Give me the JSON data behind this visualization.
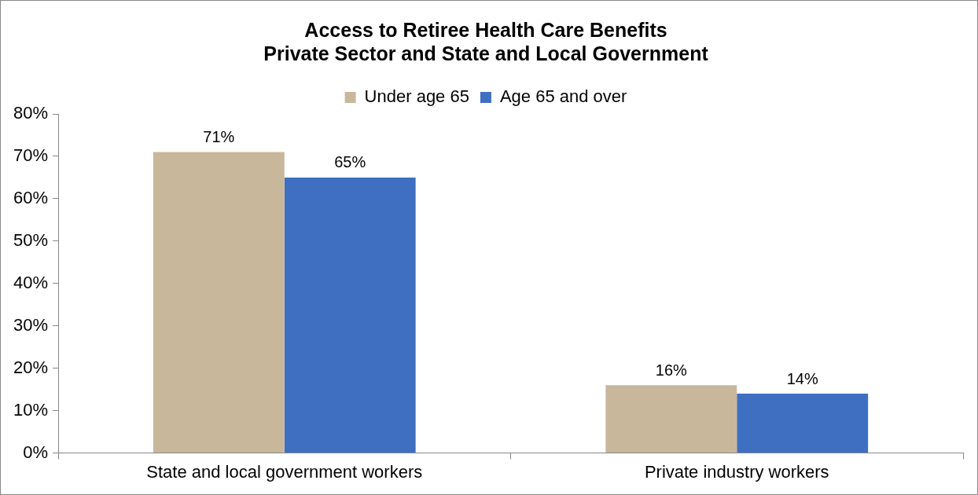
{
  "chart_data": {
    "type": "bar",
    "title": "Access to Retiree Health Care Benefits\nPrivate Sector and State and Local Government",
    "categories": [
      "State and local government workers",
      "Private industry workers"
    ],
    "series": [
      {
        "name": "Under age 65",
        "color": "#c9b79c",
        "values": [
          71,
          16
        ],
        "value_labels": [
          "71%",
          "16%"
        ]
      },
      {
        "name": "Age 65 and over",
        "color": "#3f6fc0",
        "values": [
          65,
          14
        ],
        "value_labels": [
          "65%",
          "14%"
        ]
      }
    ],
    "ylim": [
      0,
      80
    ],
    "yticks": [
      {
        "value": 0,
        "label": "0%"
      },
      {
        "value": 10,
        "label": "10%"
      },
      {
        "value": 20,
        "label": "20%"
      },
      {
        "value": 30,
        "label": "30%"
      },
      {
        "value": 40,
        "label": "40%"
      },
      {
        "value": 50,
        "label": "50%"
      },
      {
        "value": 60,
        "label": "60%"
      },
      {
        "value": 70,
        "label": "70%"
      },
      {
        "value": 80,
        "label": "80%"
      }
    ],
    "grid": false,
    "legend": "top"
  }
}
